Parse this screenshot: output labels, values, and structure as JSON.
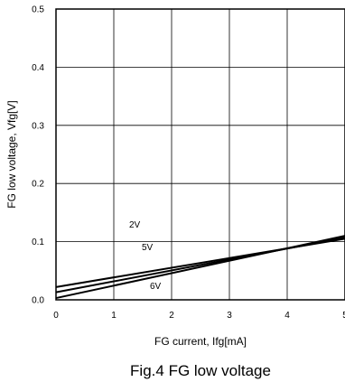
{
  "chart_data": {
    "type": "line",
    "caption": "Fig.4 FG low voltage",
    "xlabel": "FG current, Ifg[mA]",
    "ylabel": "FG low voltage, Vfg[V]",
    "xlim": [
      0,
      5
    ],
    "ylim": [
      0,
      0.5
    ],
    "x_ticks": [
      "0",
      "1",
      "2",
      "3",
      "4",
      "5"
    ],
    "y_ticks": [
      "0.0",
      "0.1",
      "0.2",
      "0.3",
      "0.4",
      "0.5"
    ],
    "grid": true,
    "series": [
      {
        "name": "2V",
        "x": [
          0,
          5
        ],
        "y": [
          0.022,
          0.105
        ]
      },
      {
        "name": "5V",
        "x": [
          0,
          5
        ],
        "y": [
          0.013,
          0.107
        ]
      },
      {
        "name": "6V",
        "x": [
          0,
          5
        ],
        "y": [
          0.003,
          0.11
        ]
      }
    ]
  }
}
